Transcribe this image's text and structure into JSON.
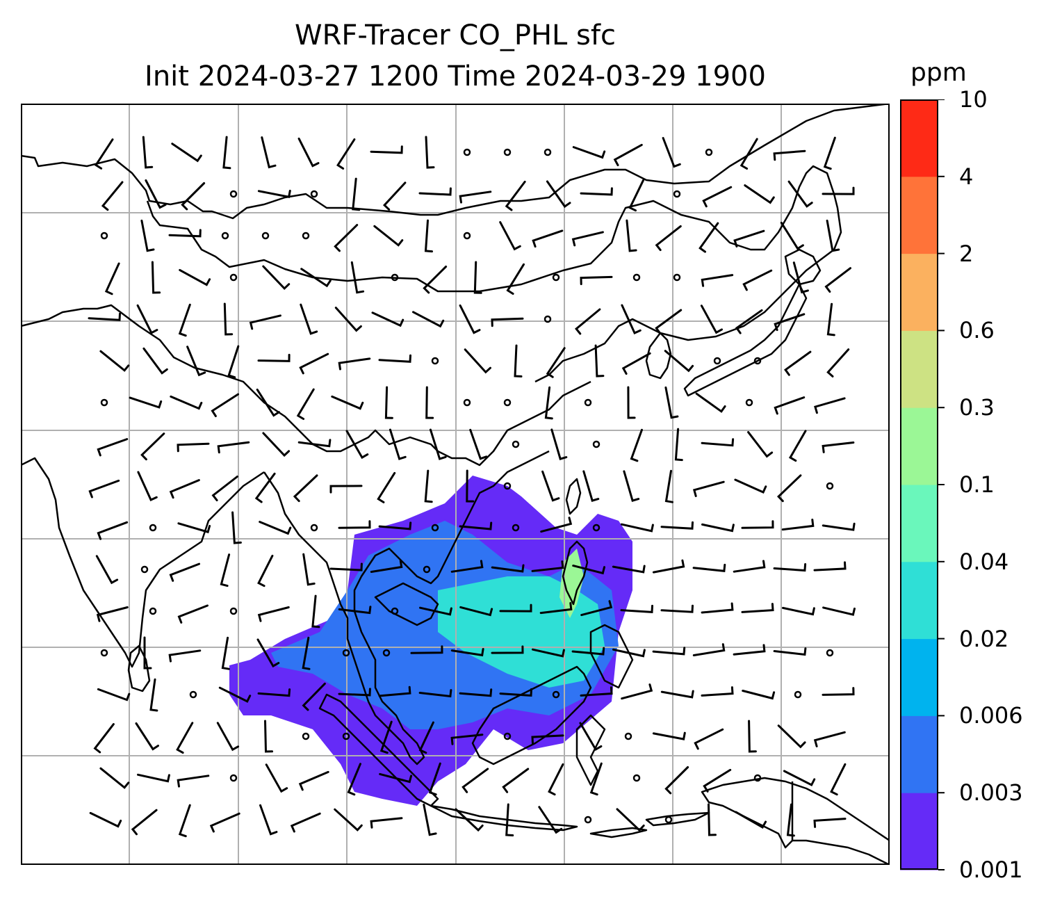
{
  "title": {
    "line1": "WRF-Tracer CO_PHL sfc",
    "line2": "Init 2024-03-27 1200 Time 2024-03-29 1900"
  },
  "colorbar": {
    "unit": "ppm",
    "levels": [
      "0.001",
      "0.003",
      "0.006",
      "0.02",
      "0.04",
      "0.1",
      "0.3",
      "0.6",
      "2",
      "4",
      "10"
    ],
    "colors": [
      "#652bf7",
      "#3074f3",
      "#00b3ee",
      "#2fdfd6",
      "#6af7bb",
      "#9bf796",
      "#cde283",
      "#fbb15f",
      "#ff7339",
      "#fe2a16"
    ]
  },
  "map": {
    "gridlines": "on",
    "features": [
      "coastlines",
      "country-borders",
      "wind-barbs",
      "calm-wind-circles"
    ],
    "plume_colors": {
      "outer": "#652bf7",
      "mid": "#3074f3",
      "inner": "#2fdfd6",
      "core": "#9bf796"
    }
  }
}
